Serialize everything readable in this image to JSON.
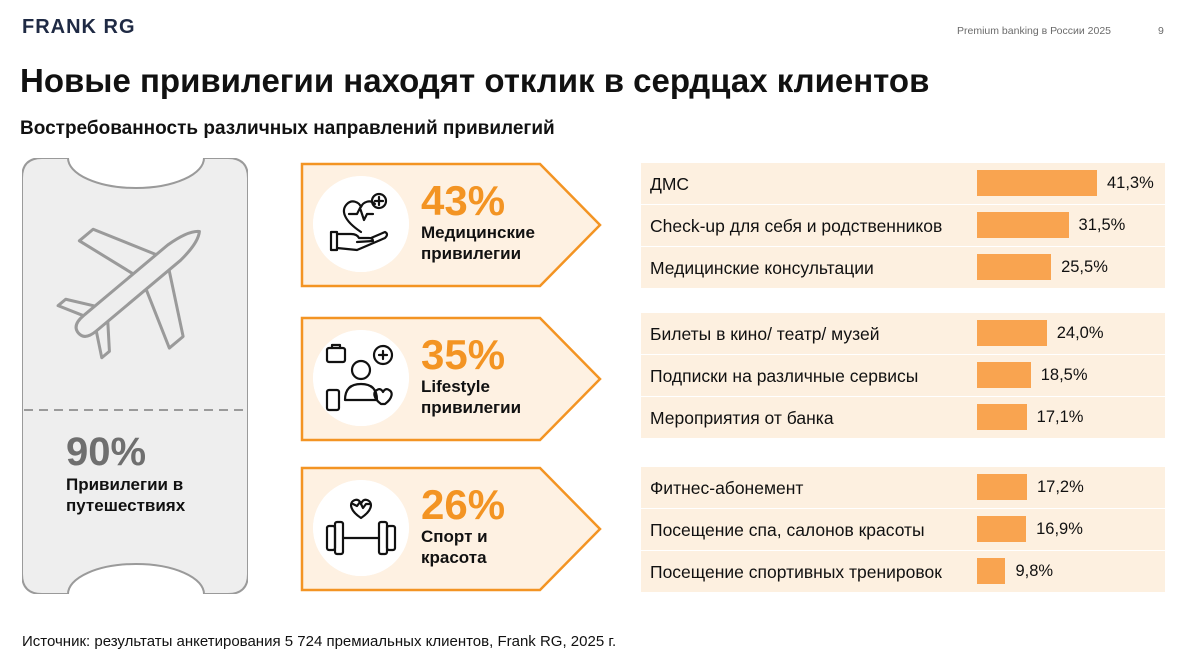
{
  "header": {
    "logo": "FRANK RG",
    "document_title": "Premium banking в России 2025",
    "page_number": "9"
  },
  "title": "Новые привилегии находят отклик в сердцах клиентов",
  "subtitle": "Востребованность различных направлений привилегий",
  "travel": {
    "percent": "90%",
    "label": "Привилегии в путешествиях",
    "icon": "airplane-icon"
  },
  "categories": [
    {
      "percent": "43%",
      "label": "Медицинские привилегии",
      "icon": "health-hand-icon"
    },
    {
      "percent": "35%",
      "label": "Lifestyle привилегии",
      "icon": "lifestyle-person-icon"
    },
    {
      "percent": "26%",
      "label": "Спорт и красота",
      "icon": "dumbbell-heart-icon"
    }
  ],
  "colors": {
    "accent": "#f39423",
    "bar": "#f9a450",
    "row_bg": "#fdf0e0",
    "arrow_bg": "#fef1e2",
    "ticket_bg": "#eeeeee"
  },
  "chart_data": {
    "type": "bar",
    "orientation": "horizontal",
    "title": "Востребованность различных направлений привилегий",
    "xlabel": "",
    "ylabel": "",
    "xlim": [
      0,
      45
    ],
    "unit": "%",
    "groups": [
      {
        "category": "Медицинские привилегии",
        "items": [
          {
            "label": "ДМС",
            "value": 41.3,
            "value_label": "41,3%"
          },
          {
            "label": "Check-up для себя и родственников",
            "value": 31.5,
            "value_label": "31,5%"
          },
          {
            "label": "Медицинские консультации",
            "value": 25.5,
            "value_label": "25,5%"
          }
        ]
      },
      {
        "category": "Lifestyle привилегии",
        "items": [
          {
            "label": "Билеты в кино/ театр/ музей",
            "value": 24.0,
            "value_label": "24,0%"
          },
          {
            "label": "Подписки на различные сервисы",
            "value": 18.5,
            "value_label": "18,5%"
          },
          {
            "label": "Мероприятия от банка",
            "value": 17.1,
            "value_label": "17,1%"
          }
        ]
      },
      {
        "category": "Спорт и красота",
        "items": [
          {
            "label": "Фитнес-абонемент",
            "value": 17.2,
            "value_label": "17,2%"
          },
          {
            "label": "Посещение спа, салонов красоты",
            "value": 16.9,
            "value_label": "16,9%"
          },
          {
            "label": "Посещение спортивных тренировок",
            "value": 9.8,
            "value_label": "9,8%"
          }
        ]
      }
    ]
  },
  "footer": {
    "source": "Источник: результаты анкетирования 5 724 премиальных клиентов, Frank RG, 2025 г."
  }
}
